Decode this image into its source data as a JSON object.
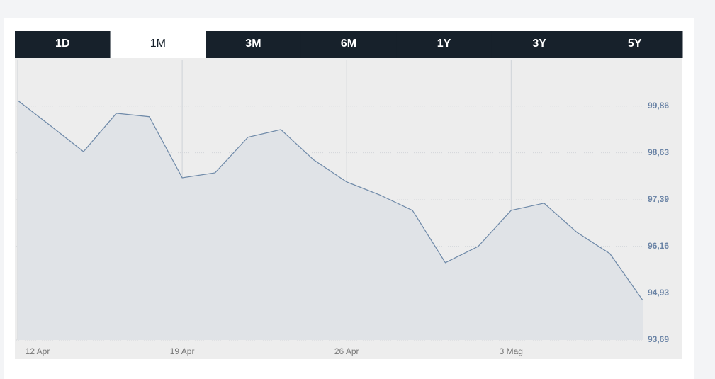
{
  "tabs": [
    "1D",
    "1M",
    "3M",
    "6M",
    "1Y",
    "3Y",
    "5Y"
  ],
  "active_tab": 1,
  "chart_data": {
    "type": "area",
    "categories": [
      "12 Apr",
      null,
      null,
      null,
      null,
      "19 Apr",
      null,
      null,
      null,
      null,
      "26 Apr",
      null,
      null,
      null,
      null,
      "3 Mag",
      null,
      null,
      null,
      null
    ],
    "values": [
      100.01,
      99.34,
      98.66,
      99.67,
      99.58,
      97.97,
      98.1,
      99.04,
      99.24,
      98.44,
      97.86,
      97.52,
      97.11,
      95.73,
      96.16,
      97.11,
      97.3,
      96.53,
      95.97,
      94.74
    ],
    "color": "#6e89a8",
    "ylim": [
      93.69,
      101.07
    ],
    "yticks": [
      {
        "value": 93.69,
        "label": "93,69"
      },
      {
        "value": 94.93,
        "label": "94,93"
      },
      {
        "value": 96.16,
        "label": "96,16"
      },
      {
        "value": 97.39,
        "label": "97,39"
      },
      {
        "value": 98.63,
        "label": "98,63"
      },
      {
        "value": 99.86,
        "label": "99,86"
      }
    ],
    "grid": true
  }
}
